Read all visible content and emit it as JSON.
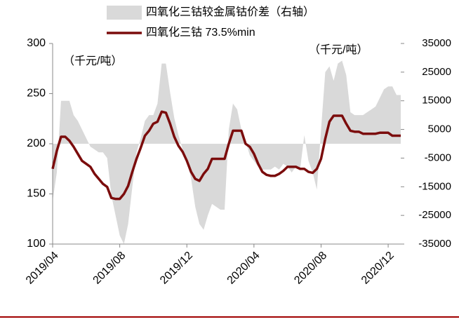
{
  "chart_data": {
    "type": "combo",
    "categories": [
      "2019/04",
      null,
      null,
      null,
      null,
      null,
      null,
      null,
      null,
      null,
      null,
      null,
      null,
      null,
      null,
      null,
      "2019/08",
      null,
      null,
      null,
      null,
      null,
      null,
      null,
      null,
      null,
      null,
      null,
      null,
      null,
      null,
      null,
      "2019/12",
      null,
      null,
      null,
      null,
      null,
      null,
      null,
      null,
      null,
      null,
      null,
      null,
      null,
      null,
      null,
      "2020/04",
      null,
      null,
      null,
      null,
      null,
      null,
      null,
      null,
      null,
      null,
      null,
      null,
      null,
      null,
      null,
      "2020/08",
      null,
      null,
      null,
      null,
      null,
      null,
      null,
      null,
      null,
      null,
      null,
      null,
      null,
      null,
      null,
      "2020/12",
      null,
      null,
      null
    ],
    "series": [
      {
        "name": "四氧化三钴较金属钴价差（右轴）",
        "type": "area",
        "axis": "y2",
        "color": "#d9d9d9",
        "values": [
          -20000,
          -10000,
          15000,
          15000,
          15000,
          10000,
          8000,
          5000,
          2000,
          -1000,
          -2000,
          -3000,
          -3000,
          -5000,
          -18000,
          -25000,
          -32000,
          -35000,
          -28000,
          -15000,
          -3000,
          2000,
          8000,
          10000,
          10000,
          14000,
          28000,
          28000,
          18000,
          9000,
          3000,
          -2000,
          -6000,
          -12000,
          -22000,
          -28000,
          -30000,
          -25000,
          -21000,
          -22000,
          -23000,
          -23000,
          5000,
          14000,
          12000,
          5000,
          1000,
          -4000,
          -6000,
          -8000,
          -9000,
          -9000,
          -9000,
          -8000,
          -9000,
          -7000,
          -8000,
          -10000,
          -8000,
          -9000,
          3000,
          -6000,
          -10000,
          -16000,
          5000,
          25000,
          27000,
          22000,
          28000,
          29000,
          24000,
          11000,
          10000,
          10000,
          10000,
          11000,
          12000,
          13000,
          16000,
          19000,
          20000,
          20000,
          17000,
          17000
        ]
      },
      {
        "name": "四氧化三钴 73.5%min",
        "type": "line",
        "color": "#7b0c0c",
        "values": [
          175,
          193,
          207,
          207,
          203,
          197,
          190,
          183,
          180,
          177,
          170,
          165,
          160,
          157,
          146,
          145,
          145,
          150,
          158,
          172,
          185,
          196,
          208,
          213,
          220,
          222,
          232,
          231,
          220,
          207,
          198,
          192,
          183,
          172,
          165,
          163,
          170,
          175,
          185,
          185,
          185,
          185,
          200,
          213,
          213,
          213,
          200,
          197,
          190,
          180,
          172,
          169,
          168,
          168,
          170,
          173,
          177,
          177,
          177,
          175,
          175,
          172,
          171,
          175,
          185,
          205,
          222,
          228,
          228,
          228,
          220,
          213,
          212,
          212,
          210,
          210,
          210,
          210,
          211,
          211,
          211,
          208,
          208,
          208
        ]
      }
    ],
    "ylim": [
      100,
      300
    ],
    "yticks": [
      100,
      150,
      200,
      250,
      300
    ],
    "y2lim": [
      -35000,
      35000
    ],
    "y2ticks": [
      -35000,
      -25000,
      -15000,
      -5000,
      5000,
      15000,
      25000,
      35000
    ],
    "annotations": [
      "（千元/吨）",
      "（千元/吨）"
    ]
  }
}
